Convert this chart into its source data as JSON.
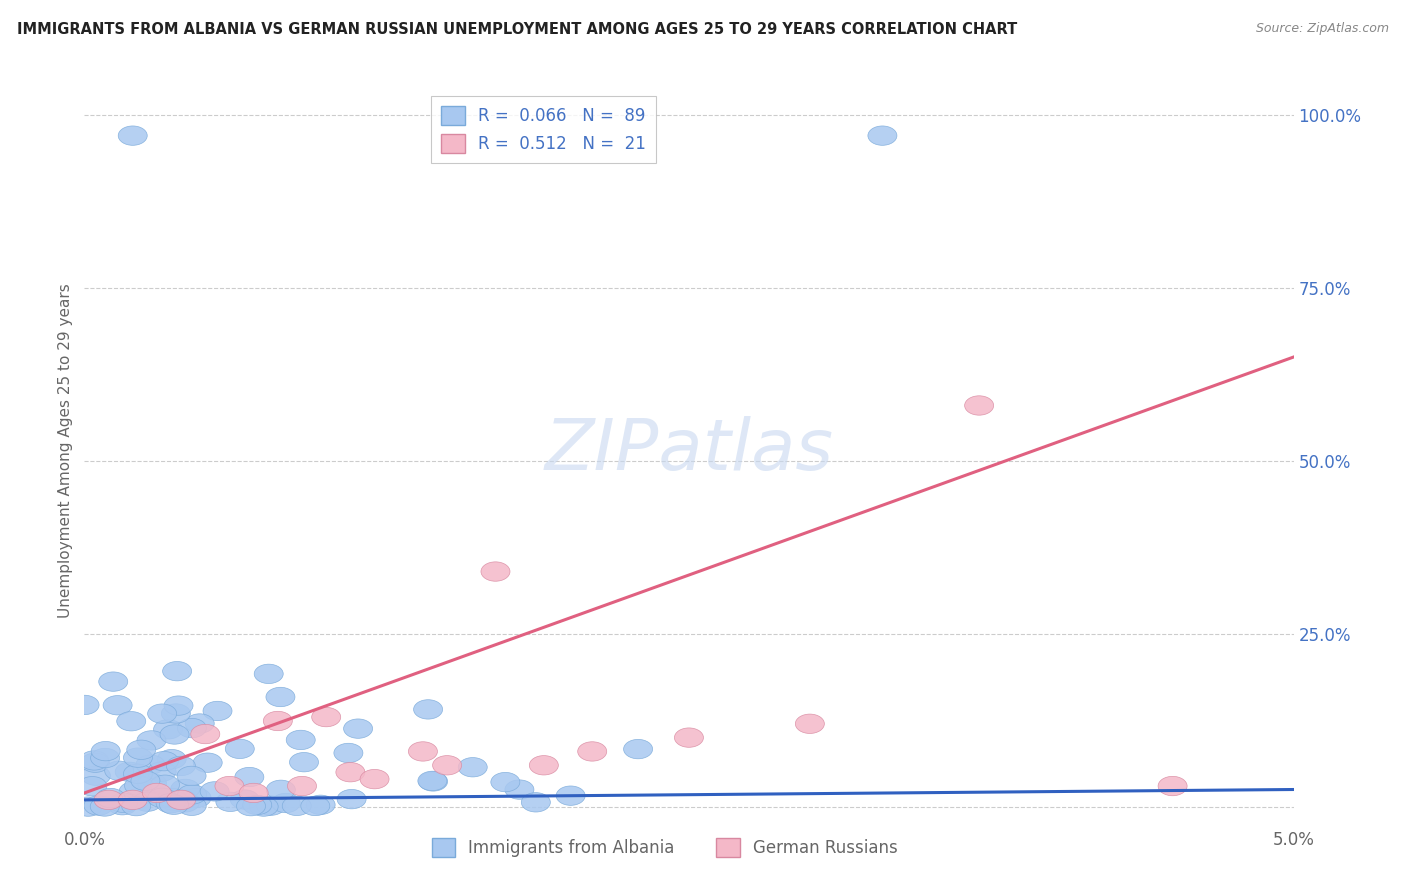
{
  "title": "IMMIGRANTS FROM ALBANIA VS GERMAN RUSSIAN UNEMPLOYMENT AMONG AGES 25 TO 29 YEARS CORRELATION CHART",
  "source": "Source: ZipAtlas.com",
  "ylabel": "Unemployment Among Ages 25 to 29 years",
  "yticks": [
    0.0,
    0.25,
    0.5,
    0.75,
    1.0
  ],
  "ytick_labels": [
    "",
    "25.0%",
    "50.0%",
    "75.0%",
    "100.0%"
  ],
  "xlim": [
    0.0,
    0.05
  ],
  "ylim": [
    -0.02,
    1.05
  ],
  "albania_R": 0.066,
  "albania_N": 89,
  "german_russian_R": 0.512,
  "german_russian_N": 21,
  "albania_color": "#a8c8f0",
  "albania_edge_color": "#7aaada",
  "german_russian_color": "#f4b8c8",
  "german_russian_edge_color": "#d888a0",
  "albania_line_color": "#3060c0",
  "german_russian_line_color": "#e06080",
  "watermark_color": "#c8d8f0",
  "background_color": "#ffffff",
  "grid_color": "#cccccc",
  "title_color": "#222222",
  "source_color": "#888888",
  "ylabel_color": "#666666",
  "ytick_color": "#4472c4",
  "xtick_color": "#666666",
  "legend_label_color": "#4472c4",
  "bottom_legend_label_color": "#666666",
  "seed": 7
}
